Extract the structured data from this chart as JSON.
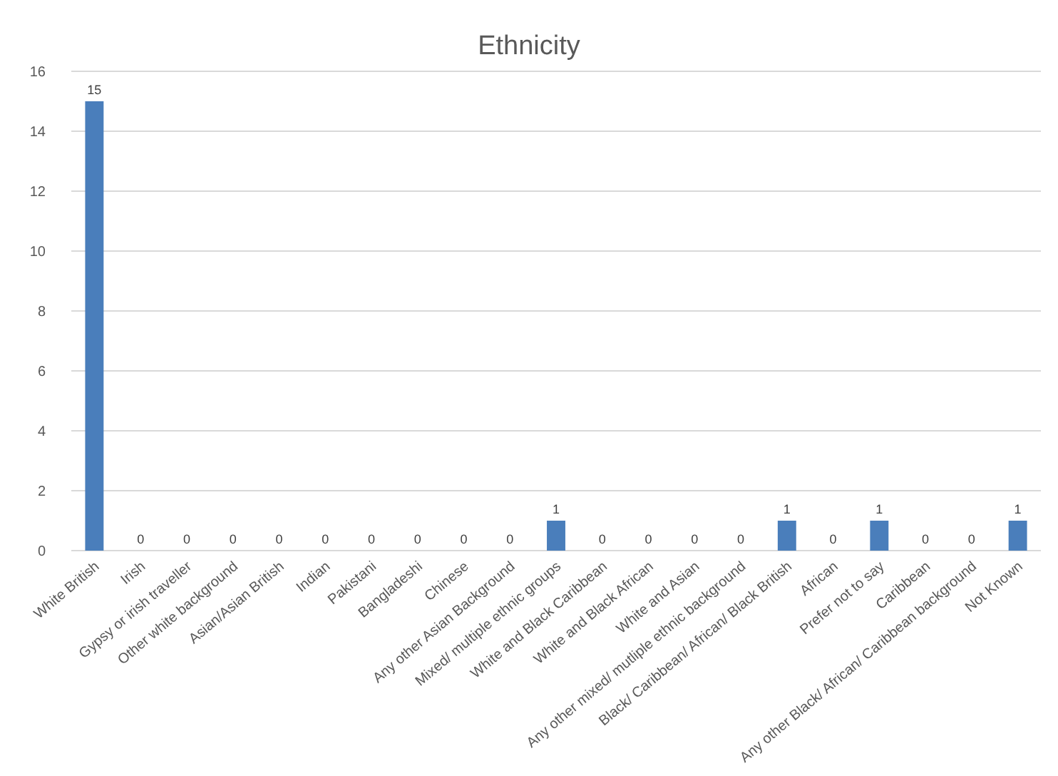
{
  "chart_data": {
    "type": "bar",
    "title": "Ethnicity",
    "categories": [
      "White British",
      "Irish",
      "Gypsy or irish traveller",
      "Other white background",
      "Asian/Asian British",
      "Indian",
      "Pakistani",
      "Bangladeshi",
      "Chinese",
      "Any other Asian Background",
      "Mixed/ multiple ethnic groups",
      "White and Black Caribbean",
      "White and Black African",
      "White and Asian",
      "Any other mixed/ mutliple ethnic background",
      "Black/ Caribbean/ African/ Black British",
      "African",
      "Prefer not to say",
      "Caribbean",
      "Any other Black/ African/ Caribbean background",
      "Not Known"
    ],
    "values": [
      15,
      0,
      0,
      0,
      0,
      0,
      0,
      0,
      0,
      0,
      1,
      0,
      0,
      0,
      0,
      1,
      0,
      1,
      0,
      0,
      1
    ],
    "color": "#4a7ebb",
    "ylim": [
      0,
      16
    ],
    "yticks": [
      0,
      2,
      4,
      6,
      8,
      10,
      12,
      14,
      16
    ],
    "grid": "y",
    "data_labels": true
  }
}
